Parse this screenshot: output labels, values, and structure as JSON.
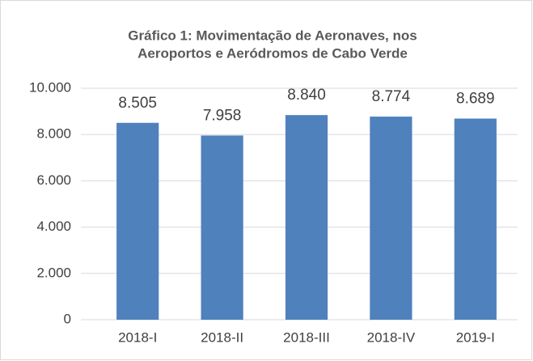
{
  "chart_data": {
    "type": "bar",
    "title": [
      "Gráfico 1: Movimentação de Aeronaves, nos",
      "Aeroportos e Aeródromos de Cabo Verde"
    ],
    "categories": [
      "2018-I",
      "2018-II",
      "2018-III",
      "2018-IV",
      "2019-I"
    ],
    "values": [
      8505,
      7958,
      8840,
      8774,
      8689
    ],
    "value_labels": [
      "8.505",
      "7.958",
      "8.840",
      "8.774",
      "8.689"
    ],
    "color": "#4f81bd",
    "ylim": [
      0,
      10000
    ],
    "yticks": [
      {
        "value": 0,
        "label": "0"
      },
      {
        "value": 2000,
        "label": "2.000"
      },
      {
        "value": 4000,
        "label": "4.000"
      },
      {
        "value": 6000,
        "label": "6.000"
      },
      {
        "value": 8000,
        "label": "8.000"
      },
      {
        "value": 10000,
        "label": "10.000"
      }
    ],
    "grid": true
  }
}
